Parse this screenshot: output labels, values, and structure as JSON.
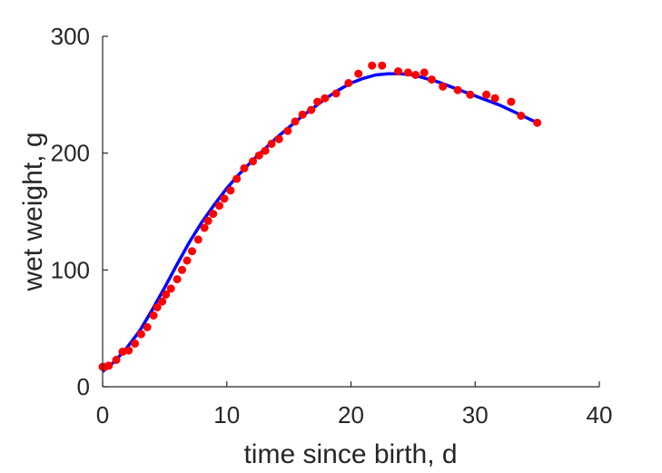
{
  "chart_data": {
    "type": "scatter",
    "xlabel": "time since birth, d",
    "ylabel": "wet weight, g",
    "xlim": [
      0,
      40
    ],
    "ylim": [
      0,
      300
    ],
    "xticks": [
      "0",
      "10",
      "20",
      "30",
      "40"
    ],
    "yticks": [
      "0",
      "100",
      "200",
      "300"
    ],
    "grid": false,
    "series": [
      {
        "kind": "points",
        "color": "#ff0000",
        "x": [
          0.0,
          0.2,
          0.5,
          1.1,
          1.6,
          2.1,
          2.6,
          3.1,
          3.6,
          4.1,
          4.4,
          4.8,
          5.1,
          5.5,
          6.0,
          6.4,
          6.8,
          7.2,
          7.7,
          8.2,
          8.5,
          8.9,
          9.4,
          9.8,
          10.3,
          10.8,
          11.4,
          12.1,
          12.6,
          13.1,
          13.6,
          14.2,
          14.9,
          15.5,
          16.1,
          16.8,
          17.3,
          17.9,
          18.8,
          19.8,
          20.6,
          21.7,
          22.5,
          23.8,
          24.6,
          25.2,
          25.9,
          26.5,
          27.4,
          28.6,
          29.6,
          30.9,
          31.6,
          32.9,
          33.7,
          35.0
        ],
        "y": [
          17,
          17,
          18,
          23,
          30,
          31,
          37,
          45,
          51,
          61,
          68,
          73,
          79,
          84,
          92,
          100,
          108,
          116,
          126,
          136,
          142,
          148,
          155,
          161,
          168,
          178,
          187,
          193,
          198,
          202,
          208,
          212,
          219,
          227,
          233,
          237,
          244,
          247,
          251,
          260,
          268,
          275,
          275,
          270,
          269,
          267,
          269,
          263,
          257,
          254,
          250,
          250,
          247,
          244,
          232,
          226
        ]
      },
      {
        "kind": "curve",
        "color": "#0000ff",
        "x": [
          0,
          1,
          2,
          3,
          4,
          5,
          6,
          7,
          8,
          9,
          10,
          11,
          12,
          13,
          14,
          15,
          16,
          17,
          18,
          19,
          20,
          21,
          22,
          23,
          24,
          25,
          26,
          27,
          28,
          29,
          30,
          31,
          32,
          33,
          34,
          35
        ],
        "y": [
          13,
          22,
          34,
          48,
          66,
          85,
          105,
          124,
          141,
          156,
          170,
          182,
          193,
          203,
          213,
          222,
          231,
          239,
          247,
          254,
          260,
          264,
          267,
          268,
          268,
          267,
          264,
          261,
          257,
          253,
          249,
          245,
          241,
          236,
          231,
          226
        ]
      }
    ]
  }
}
